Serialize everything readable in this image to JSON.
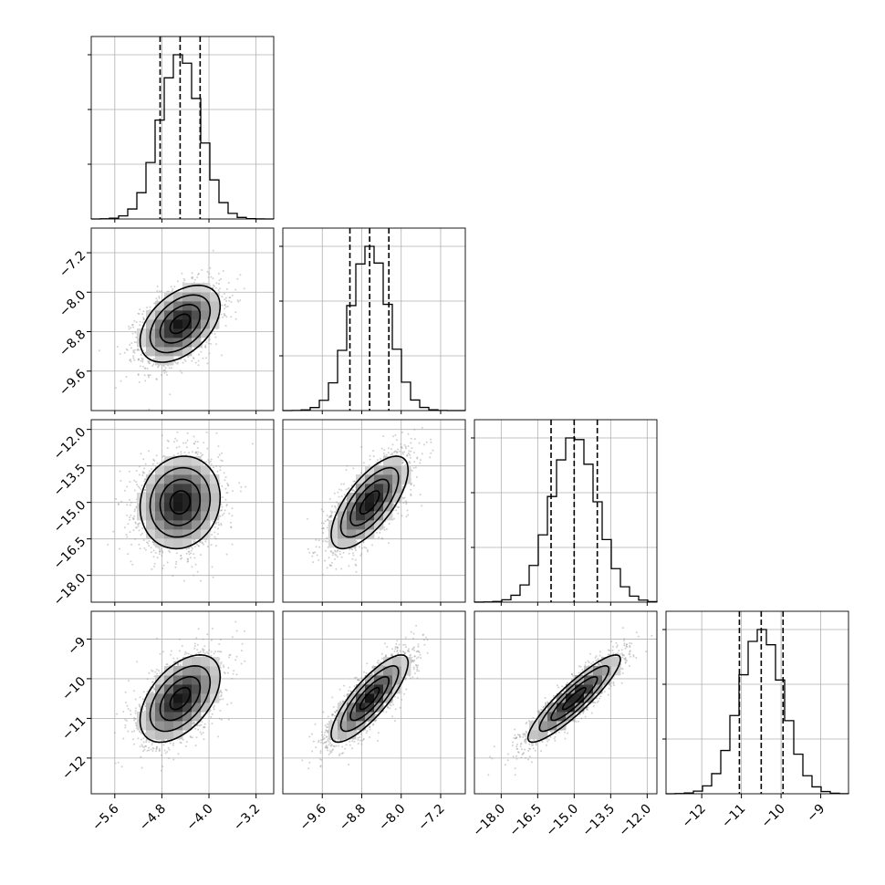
{
  "chart_data": {
    "type": "corner",
    "parameters": [
      {
        "range": [
          -6.0,
          -2.9
        ],
        "ticks": [
          -5.6,
          -4.8,
          -4.0,
          -3.2
        ],
        "tick_labels": [
          "−5.6",
          "−4.8",
          "−4.0",
          "−3.2"
        ],
        "quantiles": [
          -4.83,
          -4.49,
          -4.15
        ],
        "median": -4.49,
        "sigma": 0.34
      },
      {
        "range": [
          -10.4,
          -6.7
        ],
        "ticks": [
          -9.6,
          -8.8,
          -8.0,
          -7.2
        ],
        "tick_labels": [
          "−9.6",
          "−8.8",
          "−8.0",
          "−7.2"
        ],
        "quantiles": [
          -9.04,
          -8.64,
          -8.25
        ],
        "median": -8.64,
        "sigma": 0.39
      },
      {
        "range": [
          -19.1,
          -11.6
        ],
        "ticks": [
          -18.0,
          -16.5,
          -15.0,
          -13.5,
          -12.0
        ],
        "tick_labels": [
          "−18.0",
          "−16.5",
          "−15.0",
          "−13.5",
          "−12.0"
        ],
        "quantiles": [
          -15.95,
          -15.0,
          -14.05
        ],
        "median": -15.0,
        "sigma": 0.95
      },
      {
        "range": [
          -12.9,
          -8.3
        ],
        "ticks": [
          -12,
          -11,
          -10,
          -9
        ],
        "tick_labels": [
          "−12",
          "−11",
          "−10",
          "−9"
        ],
        "quantiles": [
          -11.05,
          -10.5,
          -9.95
        ],
        "median": -10.5,
        "sigma": 0.55
      }
    ],
    "correlations": [
      {
        "pair": [
          1,
          0
        ],
        "rho": 0.45
      },
      {
        "pair": [
          2,
          0
        ],
        "rho": 0.1
      },
      {
        "pair": [
          2,
          1
        ],
        "rho": 0.7
      },
      {
        "pair": [
          3,
          0
        ],
        "rho": 0.5
      },
      {
        "pair": [
          3,
          1
        ],
        "rho": 0.82
      },
      {
        "pair": [
          3,
          2
        ],
        "rho": 0.9
      }
    ],
    "contour_levels_sigma": [
      0.5,
      1.0,
      1.5,
      2.0
    ],
    "quantile_line_style": "dashed",
    "grid": true,
    "colors": {
      "line": "#000000",
      "grid": "#b0b0b0",
      "points": "#9a9a9a"
    }
  }
}
